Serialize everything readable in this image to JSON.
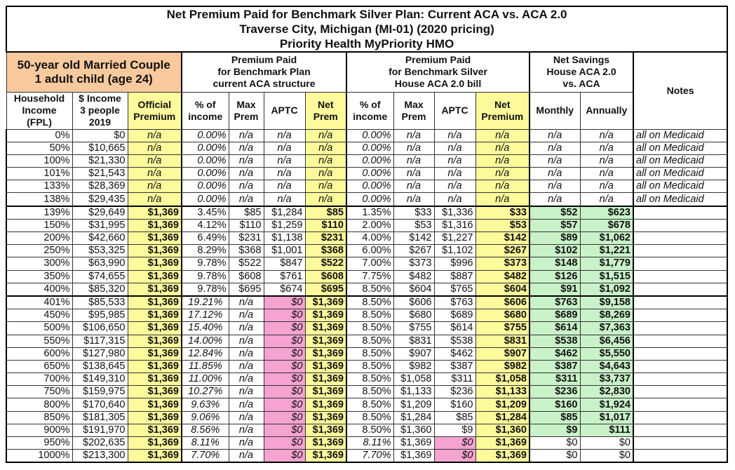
{
  "title": {
    "line1": "Net Premium Paid for Benchmark Silver Plan: Current ACA vs. ACA 2.0",
    "line2": "Traverse City, Michigan (MI-01) (2020 pricing)",
    "line3": "Priority Health MyPriority HMO"
  },
  "groups": {
    "household": "50-year old Married Couple\n1 adult child (age 24)",
    "current": "Premium Paid\nfor Benchmark Plan\ncurrent ACA structure",
    "aca2": "Premium Paid\nfor Benchmark Silver\nHouse ACA 2.0 bill",
    "savings": "Net Savings\nHouse ACA 2.0\nvs. ACA",
    "notes": "Notes"
  },
  "columns": [
    "Household\nIncome\n(FPL)",
    "$ Income\n3 people\n2019",
    "Official\nPremium",
    "% of\nincome",
    "Max\nPrem",
    "APTC",
    "Net\nPrem",
    "% of\nincome",
    "Max\nPrem",
    "APTC",
    "Net\nPremium",
    "Monthly",
    "Annually"
  ],
  "colors": {
    "yellow": "#fdfa9c",
    "orange": "#f9c99e",
    "pink": "#f5a3d0",
    "green": "#c9f2c9"
  },
  "rows": [
    [
      "0%",
      "$0",
      "n/a",
      "0.00%",
      "n/a",
      "n/a",
      "n/a",
      "0.00%",
      "n/a",
      "n/a",
      "n/a",
      "n/a",
      "n/a",
      "all on Medicaid"
    ],
    [
      "50%",
      "$10,665",
      "n/a",
      "0.00%",
      "n/a",
      "n/a",
      "n/a",
      "0.00%",
      "n/a",
      "n/a",
      "n/a",
      "n/a",
      "n/a",
      "all on Medicaid"
    ],
    [
      "100%",
      "$21,330",
      "n/a",
      "0.00%",
      "n/a",
      "n/a",
      "n/a",
      "0.00%",
      "n/a",
      "n/a",
      "n/a",
      "n/a",
      "n/a",
      "all on Medicaid"
    ],
    [
      "101%",
      "$21,543",
      "n/a",
      "0.00%",
      "n/a",
      "n/a",
      "n/a",
      "0.00%",
      "n/a",
      "n/a",
      "n/a",
      "n/a",
      "n/a",
      "all on Medicaid"
    ],
    [
      "133%",
      "$28,369",
      "n/a",
      "0.00%",
      "n/a",
      "n/a",
      "n/a",
      "0.00%",
      "n/a",
      "n/a",
      "n/a",
      "n/a",
      "n/a",
      "all on Medicaid"
    ],
    [
      "138%",
      "$29,435",
      "n/a",
      "0.00%",
      "n/a",
      "n/a",
      "n/a",
      "0.00%",
      "n/a",
      "n/a",
      "n/a",
      "n/a",
      "n/a",
      "all on Medicaid"
    ],
    [
      "139%",
      "$29,649",
      "$1,369",
      "3.45%",
      "$85",
      "$1,284",
      "$85",
      "1.35%",
      "$33",
      "$1,336",
      "$33",
      "$52",
      "$623",
      ""
    ],
    [
      "150%",
      "$31,995",
      "$1,369",
      "4.12%",
      "$110",
      "$1,259",
      "$110",
      "2.00%",
      "$53",
      "$1,316",
      "$53",
      "$57",
      "$678",
      ""
    ],
    [
      "200%",
      "$42,660",
      "$1,369",
      "6.49%",
      "$231",
      "$1,138",
      "$231",
      "4.00%",
      "$142",
      "$1,227",
      "$142",
      "$89",
      "$1,062",
      ""
    ],
    [
      "250%",
      "$53,325",
      "$1,369",
      "8.29%",
      "$368",
      "$1,001",
      "$368",
      "6.00%",
      "$267",
      "$1,102",
      "$267",
      "$102",
      "$1,221",
      ""
    ],
    [
      "300%",
      "$63,990",
      "$1,369",
      "9.78%",
      "$522",
      "$847",
      "$522",
      "7.00%",
      "$373",
      "$996",
      "$373",
      "$148",
      "$1,779",
      ""
    ],
    [
      "350%",
      "$74,655",
      "$1,369",
      "9.78%",
      "$608",
      "$761",
      "$608",
      "7.75%",
      "$482",
      "$887",
      "$482",
      "$126",
      "$1,515",
      ""
    ],
    [
      "400%",
      "$85,320",
      "$1,369",
      "9.78%",
      "$695",
      "$674",
      "$695",
      "8.50%",
      "$604",
      "$765",
      "$604",
      "$91",
      "$1,092",
      ""
    ],
    [
      "401%",
      "$85,533",
      "$1,369",
      "19.21%",
      "n/a",
      "$0",
      "$1,369",
      "8.50%",
      "$606",
      "$763",
      "$606",
      "$763",
      "$9,158",
      ""
    ],
    [
      "450%",
      "$95,985",
      "$1,369",
      "17.12%",
      "n/a",
      "$0",
      "$1,369",
      "8.50%",
      "$680",
      "$689",
      "$680",
      "$689",
      "$8,269",
      ""
    ],
    [
      "500%",
      "$106,650",
      "$1,369",
      "15.40%",
      "n/a",
      "$0",
      "$1,369",
      "8.50%",
      "$755",
      "$614",
      "$755",
      "$614",
      "$7,363",
      ""
    ],
    [
      "550%",
      "$117,315",
      "$1,369",
      "14.00%",
      "n/a",
      "$0",
      "$1,369",
      "8.50%",
      "$831",
      "$538",
      "$831",
      "$538",
      "$6,456",
      ""
    ],
    [
      "600%",
      "$127,980",
      "$1,369",
      "12.84%",
      "n/a",
      "$0",
      "$1,369",
      "8.50%",
      "$907",
      "$462",
      "$907",
      "$462",
      "$5,550",
      ""
    ],
    [
      "650%",
      "$138,645",
      "$1,369",
      "11.85%",
      "n/a",
      "$0",
      "$1,369",
      "8.50%",
      "$982",
      "$387",
      "$982",
      "$387",
      "$4,643",
      ""
    ],
    [
      "700%",
      "$149,310",
      "$1,369",
      "11.00%",
      "n/a",
      "$0",
      "$1,369",
      "8.50%",
      "$1,058",
      "$311",
      "$1,058",
      "$311",
      "$3,737",
      ""
    ],
    [
      "750%",
      "$159,975",
      "$1,369",
      "10.27%",
      "n/a",
      "$0",
      "$1,369",
      "8.50%",
      "$1,133",
      "$236",
      "$1,133",
      "$236",
      "$2,830",
      ""
    ],
    [
      "800%",
      "$170,640",
      "$1,369",
      "9.63%",
      "n/a",
      "$0",
      "$1,369",
      "8.50%",
      "$1,209",
      "$160",
      "$1,209",
      "$160",
      "$1,924",
      ""
    ],
    [
      "850%",
      "$181,305",
      "$1,369",
      "9.06%",
      "n/a",
      "$0",
      "$1,369",
      "8.50%",
      "$1,284",
      "$85",
      "$1,284",
      "$85",
      "$1,017",
      ""
    ],
    [
      "900%",
      "$191,970",
      "$1,369",
      "8.56%",
      "n/a",
      "$0",
      "$1,369",
      "8.50%",
      "$1,360",
      "$9",
      "$1,360",
      "$9",
      "$111",
      ""
    ],
    [
      "950%",
      "$202,635",
      "$1,369",
      "8.11%",
      "n/a",
      "$0",
      "$1,369",
      "8.11%",
      "$1,369",
      "$0",
      "$1,369",
      "$0",
      "$0",
      ""
    ],
    [
      "1000%",
      "$213,300",
      "$1,369",
      "7.70%",
      "n/a",
      "$0",
      "$1,369",
      "7.70%",
      "$1,369",
      "$0",
      "$1,369",
      "$0",
      "$0",
      ""
    ]
  ]
}
